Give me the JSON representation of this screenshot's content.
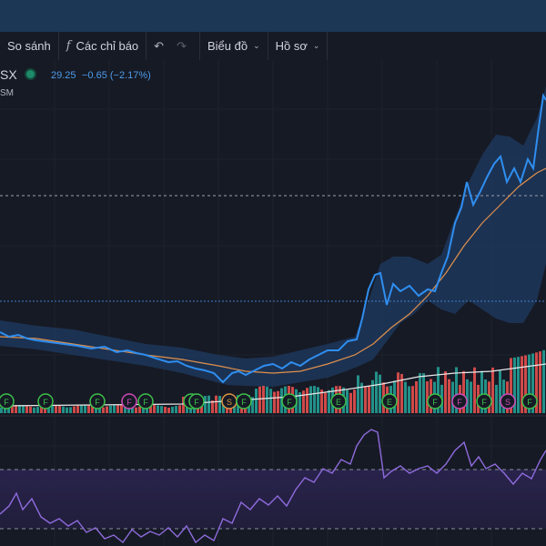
{
  "toolbar": {
    "compare_label": "So sánh",
    "indicators_label": "Các chỉ báo",
    "indicators_icon": "fx-icon",
    "undo_icon": "undo-icon",
    "redo_icon": "redo-icon",
    "chart_label": "Biểu đồ",
    "profile_label": "Hồ sơ"
  },
  "legend": {
    "symbol": "SX",
    "price": "29.25",
    "change": "−0.65 (−2.17%)",
    "sub_label": "SM"
  },
  "events": {
    "dividend_letter": "F",
    "split_letter": "S",
    "earnings_letter": "E"
  },
  "colors": {
    "price_line": "#2f8ef0",
    "ma_line": "#e0904c",
    "band": "#1f3b62",
    "volume_up": "#26a69a",
    "volume_down": "#ef5350",
    "rsi_line": "#8e6bdc",
    "rsi_band": "#2b2450",
    "event_green": "#3cc04a",
    "event_pink": "#d04ab8",
    "event_orange": "#e09440"
  }
}
